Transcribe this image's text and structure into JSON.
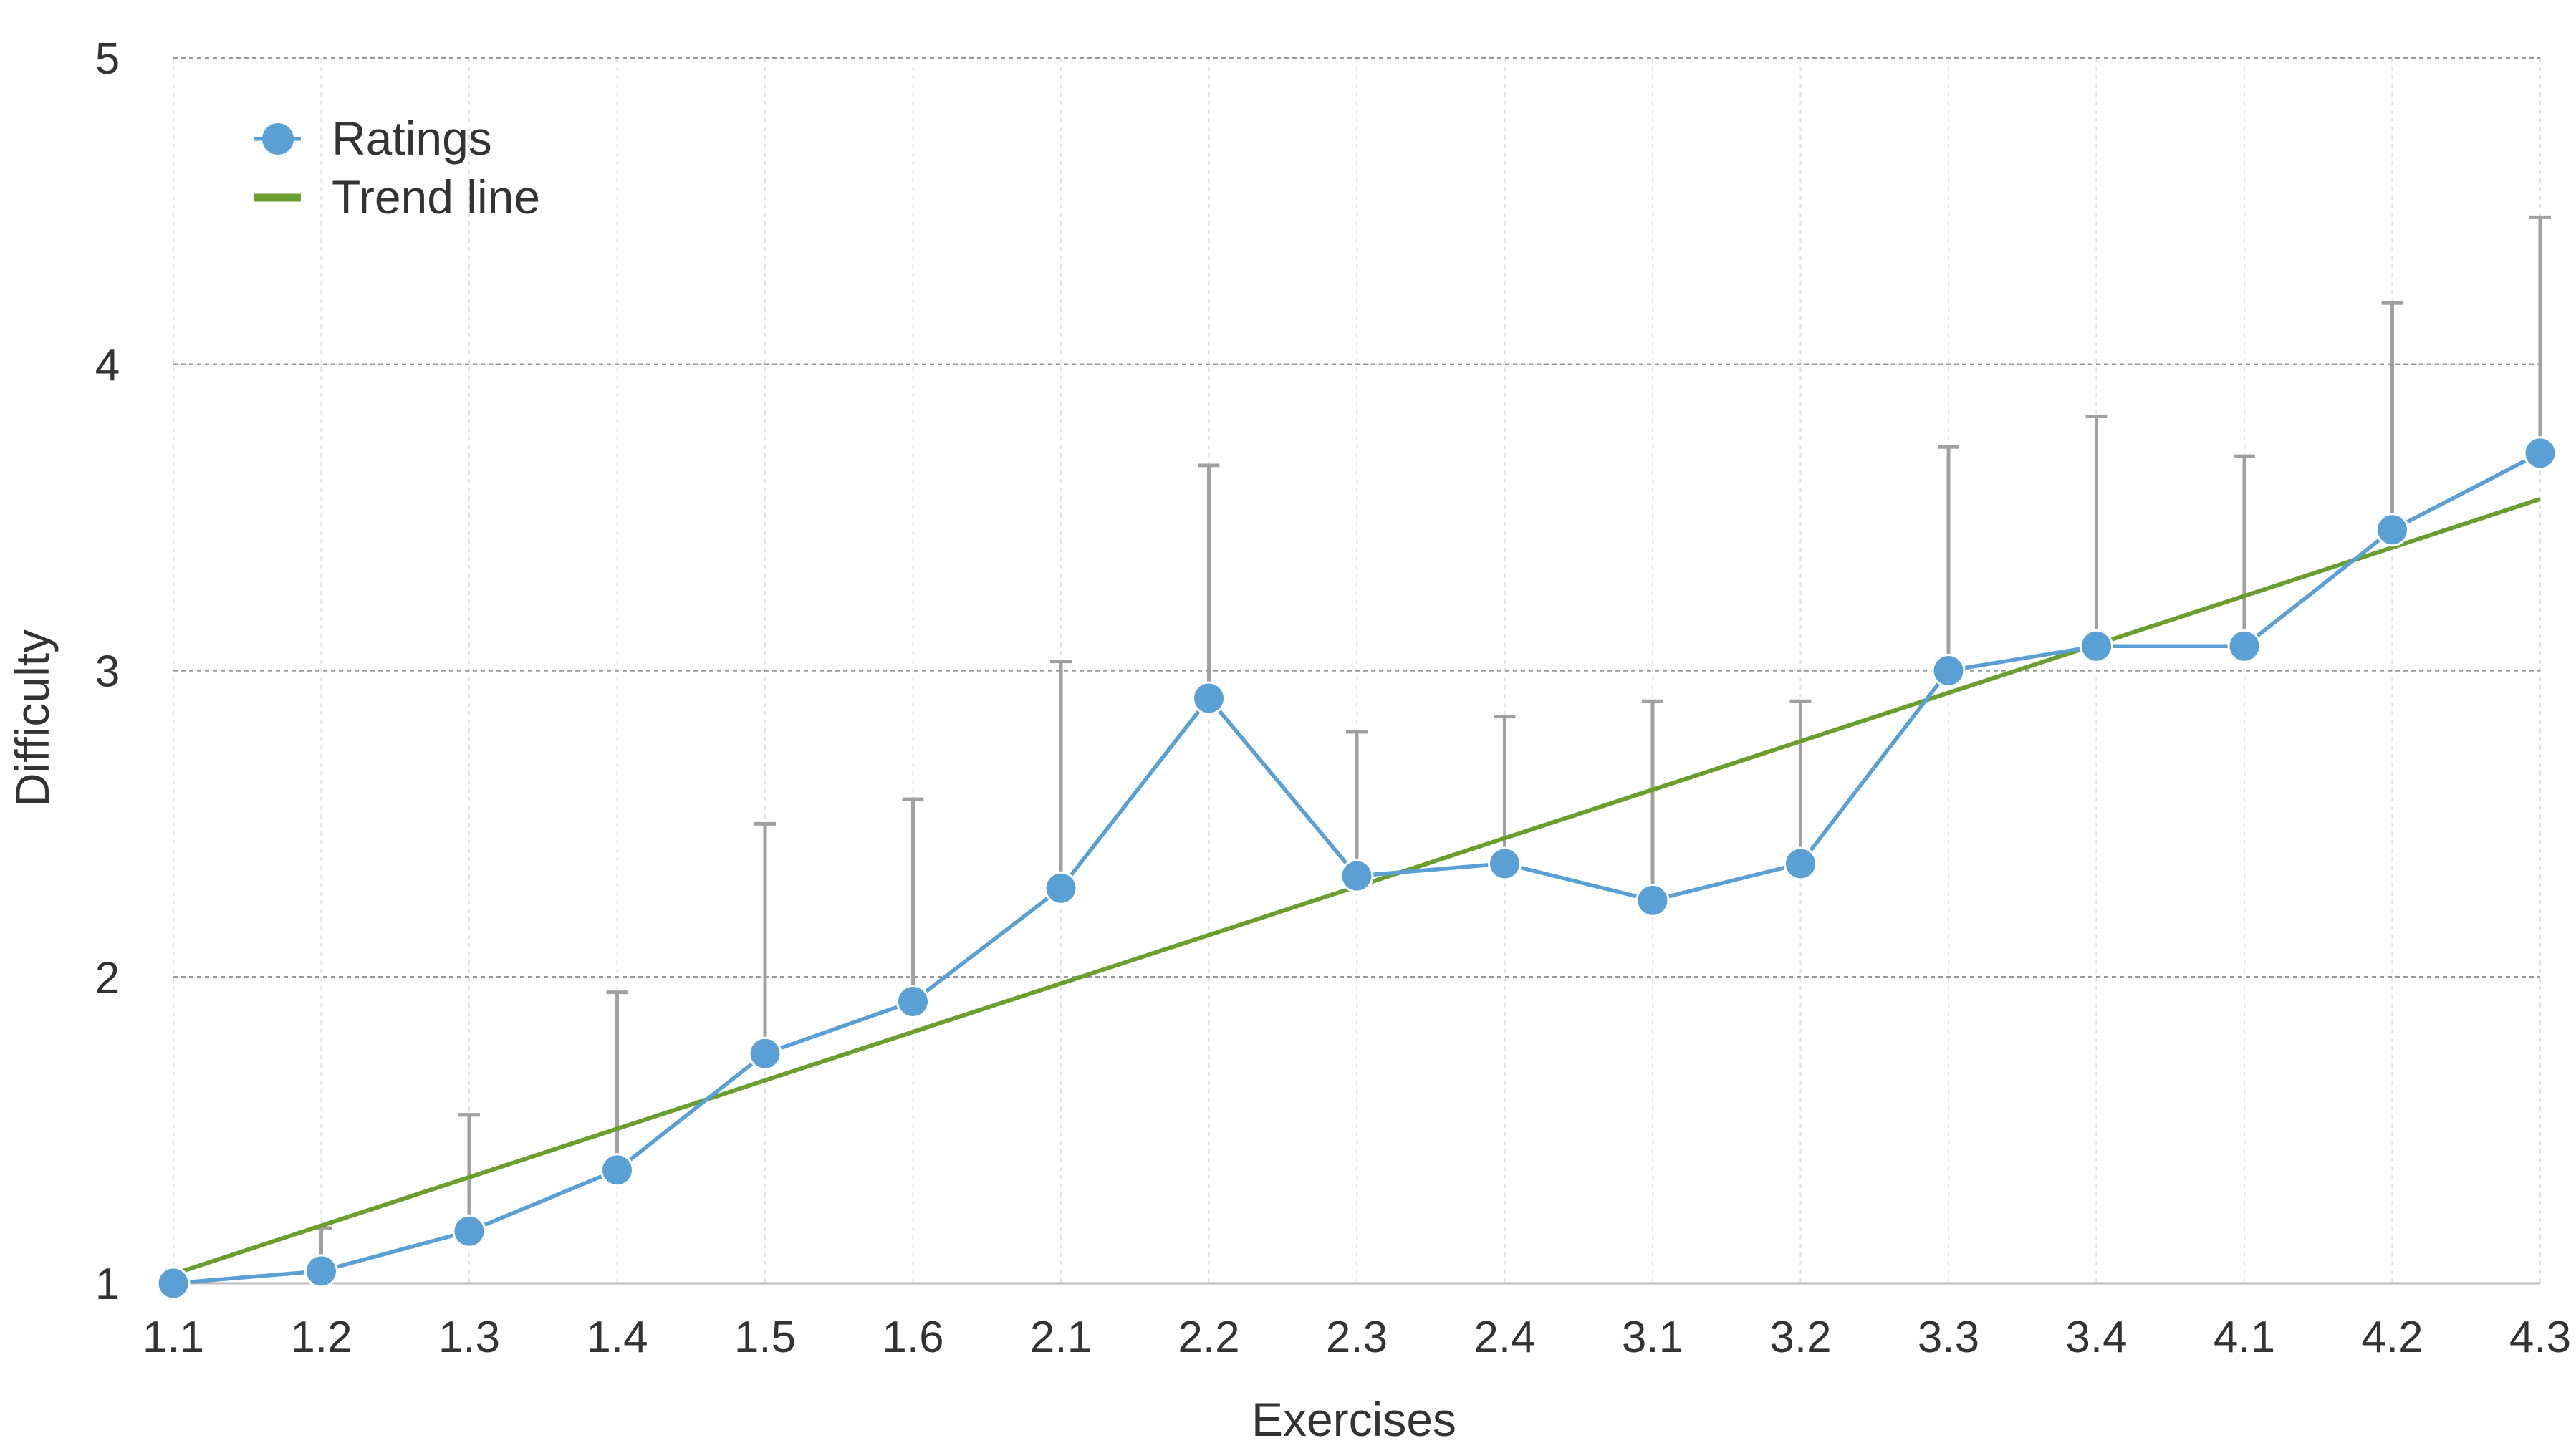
{
  "colors": {
    "ratings": "#5ba0d5",
    "trend": "#6a9e2f",
    "error_bar": "#a0a0a0",
    "grid_major": "#999999",
    "grid_minor": "#e2e2e2",
    "axis": "#bbbbbb",
    "text": "#333333"
  },
  "chart_data": {
    "type": "line",
    "title": "",
    "xlabel": "Exercises",
    "ylabel": "Difficulty",
    "ylim": [
      1,
      5
    ],
    "yticks": [
      1,
      2,
      3,
      4,
      5
    ],
    "grid": true,
    "legend_position": "top-left",
    "categories": [
      "1.1",
      "1.2",
      "1.3",
      "1.4",
      "1.5",
      "1.6",
      "2.1",
      "2.2",
      "2.3",
      "2.4",
      "3.1",
      "3.2",
      "3.3",
      "3.4",
      "4.1",
      "4.2",
      "4.3"
    ],
    "series": [
      {
        "name": "Ratings",
        "kind": "line-markers",
        "values": [
          1.0,
          1.04,
          1.17,
          1.37,
          1.75,
          1.92,
          2.29,
          2.91,
          2.33,
          2.37,
          2.25,
          2.37,
          3.0,
          3.08,
          3.08,
          3.46,
          3.71
        ],
        "error_upper": [
          1.0,
          1.18,
          1.55,
          1.95,
          2.5,
          2.58,
          3.03,
          3.67,
          2.8,
          2.85,
          2.9,
          2.9,
          3.73,
          3.83,
          3.7,
          4.2,
          4.48
        ]
      },
      {
        "name": "Trend line",
        "kind": "line",
        "start": 1.03,
        "end": 3.56
      }
    ]
  }
}
